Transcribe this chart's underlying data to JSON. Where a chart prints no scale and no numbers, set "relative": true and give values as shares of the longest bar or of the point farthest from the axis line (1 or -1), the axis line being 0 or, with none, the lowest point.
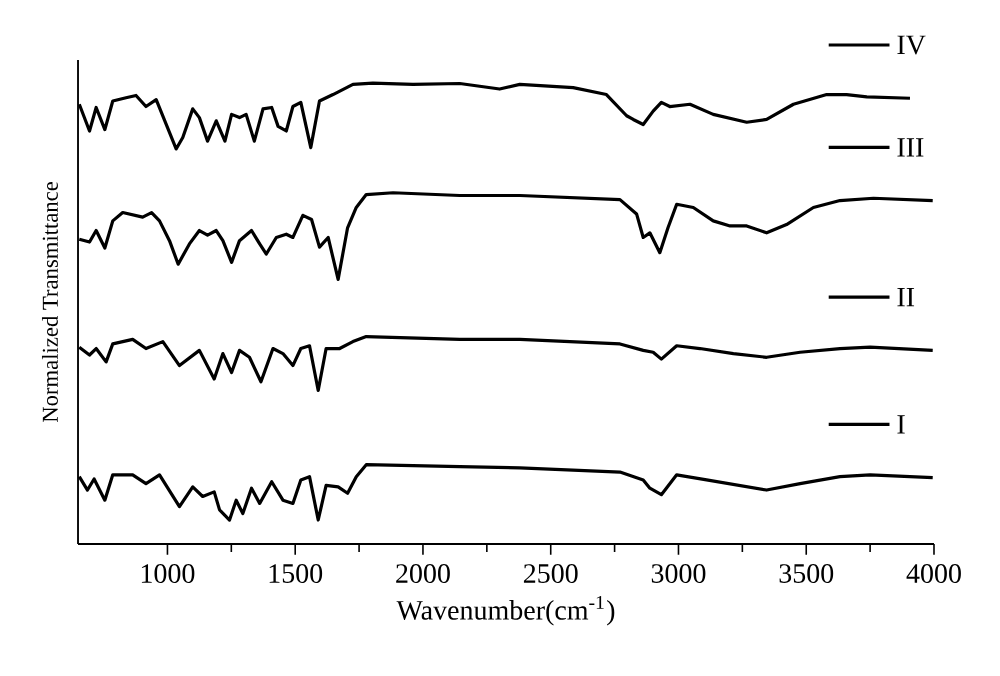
{
  "chart_data": {
    "type": "line",
    "relative": true,
    "legend": "right",
    "xlabel": "Wavenumber(cm$^{-1}$)",
    "ylabel": "Normalized Transmittance",
    "xlim": [
      650,
      4000
    ],
    "xticks": [
      1000,
      1500,
      2000,
      2500,
      3000,
      3500,
      4000
    ],
    "series": [
      {
        "name": "IV",
        "color": "#000000",
        "x": [
          655,
          695,
          721,
          755,
          786,
          838,
          877,
          916,
          956,
          1034,
          1060,
          1099,
          1125,
          1157,
          1191,
          1225,
          1251,
          1282,
          1308,
          1340,
          1374,
          1408,
          1433,
          1465,
          1491,
          1522,
          1561,
          1595,
          1648,
          1726,
          1804,
          1961,
          2144,
          2300,
          2379,
          2588,
          2718,
          2797,
          2823,
          2862,
          2901,
          2933,
          2966,
          3045,
          3136,
          3267,
          3345,
          3450,
          3580,
          3658,
          3737,
          3906
        ],
        "values": [
          0.954,
          0.896,
          0.947,
          0.899,
          0.961,
          0.968,
          0.973,
          0.949,
          0.964,
          0.857,
          0.882,
          0.944,
          0.925,
          0.874,
          0.918,
          0.874,
          0.932,
          0.925,
          0.932,
          0.874,
          0.944,
          0.947,
          0.906,
          0.896,
          0.949,
          0.958,
          0.86,
          0.961,
          0.975,
          0.997,
          1.0,
          0.997,
          0.999,
          0.987,
          0.997,
          0.99,
          0.975,
          0.929,
          0.921,
          0.91,
          0.939,
          0.958,
          0.949,
          0.954,
          0.932,
          0.915,
          0.921,
          0.954,
          0.975,
          0.975,
          0.97,
          0.967
        ]
      },
      {
        "name": "III",
        "color": "#000000",
        "x": [
          655,
          695,
          721,
          755,
          786,
          825,
          903,
          938,
          969,
          1008,
          1042,
          1086,
          1125,
          1157,
          1191,
          1217,
          1251,
          1282,
          1329,
          1361,
          1387,
          1426,
          1465,
          1491,
          1530,
          1564,
          1595,
          1629,
          1668,
          1705,
          1739,
          1778,
          1883,
          2144,
          2379,
          2771,
          2836,
          2862,
          2888,
          2927,
          2959,
          2993,
          3058,
          3136,
          3202,
          3267,
          3345,
          3423,
          3528,
          3632,
          3763,
          3995
        ],
        "values": [
          0.661,
          0.655,
          0.68,
          0.642,
          0.701,
          0.719,
          0.709,
          0.719,
          0.701,
          0.658,
          0.607,
          0.651,
          0.68,
          0.67,
          0.68,
          0.658,
          0.611,
          0.658,
          0.68,
          0.651,
          0.629,
          0.665,
          0.672,
          0.665,
          0.713,
          0.704,
          0.644,
          0.665,
          0.574,
          0.686,
          0.73,
          0.758,
          0.762,
          0.756,
          0.756,
          0.747,
          0.716,
          0.665,
          0.675,
          0.632,
          0.686,
          0.737,
          0.73,
          0.701,
          0.69,
          0.69,
          0.675,
          0.693,
          0.73,
          0.745,
          0.75,
          0.745
        ]
      },
      {
        "name": "II",
        "color": "#000000",
        "x": [
          655,
          695,
          721,
          760,
          786,
          864,
          916,
          982,
          1047,
          1125,
          1183,
          1217,
          1251,
          1282,
          1321,
          1366,
          1413,
          1452,
          1491,
          1522,
          1556,
          1590,
          1621,
          1674,
          1726,
          1778,
          2144,
          2379,
          2771,
          2862,
          2901,
          2933,
          2993,
          3084,
          3215,
          3345,
          3476,
          3632,
          3750,
          3995
        ],
        "values": [
          0.427,
          0.41,
          0.424,
          0.395,
          0.434,
          0.444,
          0.424,
          0.439,
          0.387,
          0.42,
          0.358,
          0.413,
          0.372,
          0.42,
          0.405,
          0.352,
          0.424,
          0.413,
          0.387,
          0.424,
          0.43,
          0.333,
          0.424,
          0.424,
          0.439,
          0.45,
          0.444,
          0.444,
          0.434,
          0.42,
          0.416,
          0.401,
          0.43,
          0.424,
          0.413,
          0.405,
          0.416,
          0.424,
          0.427,
          0.42
        ]
      },
      {
        "name": "I",
        "color": "#000000",
        "x": [
          655,
          687,
          713,
          755,
          786,
          864,
          916,
          969,
          1047,
          1099,
          1138,
          1183,
          1204,
          1243,
          1269,
          1295,
          1329,
          1361,
          1408,
          1452,
          1491,
          1522,
          1556,
          1590,
          1621,
          1668,
          1705,
          1739,
          1778,
          2144,
          2379,
          2771,
          2862,
          2888,
          2933,
          2993,
          3110,
          3345,
          3476,
          3632,
          3750,
          3995
        ],
        "values": [
          0.146,
          0.117,
          0.141,
          0.095,
          0.15,
          0.15,
          0.131,
          0.15,
          0.081,
          0.124,
          0.103,
          0.113,
          0.074,
          0.052,
          0.095,
          0.066,
          0.121,
          0.088,
          0.135,
          0.095,
          0.088,
          0.139,
          0.146,
          0.052,
          0.127,
          0.124,
          0.11,
          0.146,
          0.172,
          0.168,
          0.165,
          0.156,
          0.139,
          0.121,
          0.107,
          0.15,
          0.139,
          0.117,
          0.131,
          0.146,
          0.15,
          0.144
        ]
      }
    ]
  }
}
